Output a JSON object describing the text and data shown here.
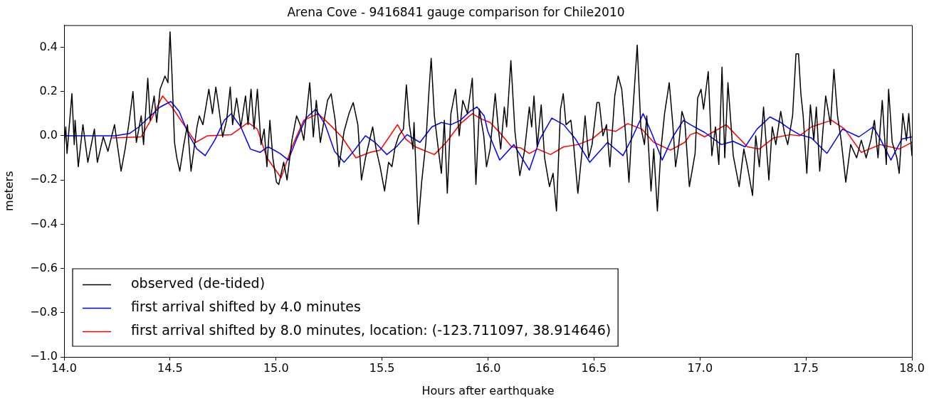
{
  "chart_data": {
    "type": "line",
    "title": "Arena Cove - 9416841 gauge comparison for Chile2010",
    "xlabel": "Hours after earthquake",
    "ylabel": "meters",
    "xlim": [
      14.0,
      18.0
    ],
    "ylim": [
      -1.0,
      0.5
    ],
    "xticks": [
      {
        "value": 14,
        "label": "14.0"
      },
      {
        "value": 14.5,
        "label": "14.5"
      },
      {
        "value": 15,
        "label": "15.0"
      },
      {
        "value": 15.5,
        "label": "15.5"
      },
      {
        "value": 16,
        "label": "16.0"
      },
      {
        "value": 16.5,
        "label": "16.5"
      },
      {
        "value": 17,
        "label": "17.0"
      },
      {
        "value": 17.5,
        "label": "17.5"
      },
      {
        "value": 18,
        "label": "18.0"
      }
    ],
    "yticks": [
      {
        "value": -1.0,
        "label": "−1.0"
      },
      {
        "value": -0.8,
        "label": "−0.8"
      },
      {
        "value": -0.6,
        "label": "−0.6"
      },
      {
        "value": -0.4,
        "label": "−0.4"
      },
      {
        "value": -0.2,
        "label": "−0.2"
      },
      {
        "value": 0,
        "label": "0.0"
      },
      {
        "value": 0.2,
        "label": "0.2"
      },
      {
        "value": 0.4,
        "label": "0.4"
      }
    ],
    "legend": "bottom left",
    "series": [
      {
        "name": "observed (de-tided)",
        "color": "#000000",
        "x": [
          14.0,
          14.008,
          14.014,
          14.037,
          14.048,
          14.052,
          14.067,
          14.089,
          14.112,
          14.143,
          14.157,
          14.185,
          14.207,
          14.238,
          14.269,
          14.288,
          14.308,
          14.325,
          14.341,
          14.364,
          14.375,
          14.395,
          14.406,
          14.425,
          14.437,
          14.453,
          14.476,
          14.49,
          14.5,
          14.509,
          14.521,
          14.532,
          14.546,
          14.565,
          14.582,
          14.599,
          14.627,
          14.638,
          14.655,
          14.683,
          14.7,
          14.716,
          14.731,
          14.748,
          14.767,
          14.784,
          14.795,
          14.814,
          14.834,
          14.856,
          14.868,
          14.882,
          14.896,
          14.912,
          14.929,
          14.944,
          14.957,
          14.971,
          14.985,
          15.002,
          15.013,
          15.036,
          15.052,
          15.075,
          15.097,
          15.114,
          15.131,
          15.159,
          15.176,
          15.19,
          15.209,
          15.243,
          15.26,
          15.279,
          15.297,
          15.321,
          15.344,
          15.364,
          15.386,
          15.403,
          15.422,
          15.456,
          15.472,
          15.491,
          15.512,
          15.531,
          15.547,
          15.562,
          15.579,
          15.601,
          15.615,
          15.629,
          15.646,
          15.651,
          15.671,
          15.688,
          15.707,
          15.722,
          15.732,
          15.747,
          15.763,
          15.78,
          15.794,
          15.808,
          15.825,
          15.847,
          15.864,
          15.881,
          15.903,
          15.926,
          15.943,
          15.959,
          15.98,
          15.993,
          16.01,
          16.034,
          16.049,
          16.06,
          16.077,
          16.088,
          16.108,
          16.127,
          16.15,
          16.172,
          16.195,
          16.206,
          16.217,
          16.232,
          16.251,
          16.267,
          16.29,
          16.307,
          16.323,
          16.342,
          16.355,
          16.368,
          16.391,
          16.404,
          16.424,
          16.447,
          16.458,
          16.475,
          16.491,
          16.514,
          16.525,
          16.542,
          16.559,
          16.575,
          16.598,
          16.614,
          16.631,
          16.648,
          16.665,
          16.682,
          16.704,
          16.721,
          16.738,
          16.749,
          16.769,
          16.782,
          16.799,
          16.816,
          16.833,
          16.855,
          16.872,
          16.885,
          16.9,
          16.915,
          16.928,
          16.95,
          16.977,
          16.989,
          17.005,
          17.017,
          17.039,
          17.056,
          17.073,
          17.089,
          17.104,
          17.117,
          17.132,
          17.157,
          17.185,
          17.207,
          17.224,
          17.248,
          17.263,
          17.28,
          17.3,
          17.325,
          17.341,
          17.358,
          17.381,
          17.397,
          17.414,
          17.437,
          17.453,
          17.465,
          17.476,
          17.487,
          17.504,
          17.521,
          17.537,
          17.549,
          17.565,
          17.593,
          17.616,
          17.632,
          17.649,
          17.666,
          17.688,
          17.711,
          17.739,
          17.761,
          17.784,
          17.806,
          17.823,
          17.84,
          17.86,
          17.879,
          17.89,
          17.907,
          17.929,
          17.94,
          17.957,
          17.974,
          17.985,
          18.0
        ],
        "values": [
          -0.05,
          0.04,
          -0.08,
          0.19,
          -0.04,
          0.07,
          -0.14,
          0.05,
          -0.12,
          0.03,
          -0.12,
          -0.005,
          -0.07,
          0.05,
          -0.16,
          -0.06,
          0.07,
          0.2,
          -0.03,
          0.09,
          -0.04,
          0.26,
          0.07,
          0.18,
          0.06,
          0.21,
          0.27,
          0.24,
          0.47,
          0.28,
          -0.03,
          -0.1,
          -0.16,
          -0.04,
          0.05,
          -0.16,
          0.04,
          0.09,
          0.05,
          0.21,
          0.1,
          0.22,
          0.12,
          -0.005,
          0.07,
          0.22,
          0.05,
          0.17,
          0.04,
          0.18,
          0.05,
          0.21,
          0.03,
          0.21,
          -0.04,
          0.03,
          -0.14,
          0.07,
          -0.1,
          -0.21,
          -0.22,
          -0.12,
          -0.2,
          -0.02,
          0.09,
          0.05,
          -0.02,
          0.24,
          -0.005,
          0.16,
          -0.03,
          0.16,
          0.19,
          0.07,
          -0.14,
          0.02,
          0.1,
          0.15,
          0.05,
          -0.2,
          -0.1,
          0.04,
          -0.06,
          -0.14,
          -0.25,
          -0.12,
          -0.14,
          -0.05,
          0,
          0.03,
          0.23,
          0.05,
          -0.06,
          0.06,
          -0.4,
          -0.2,
          -0.03,
          0.21,
          0.35,
          0.09,
          -0.04,
          -0.17,
          0.07,
          -0.26,
          0.1,
          0.21,
          0,
          0.16,
          0.1,
          0.26,
          -0.22,
          0.12,
          0,
          -0.14,
          -0.06,
          0.19,
          0.03,
          -0.06,
          0.13,
          0.04,
          0.34,
          0.02,
          -0.18,
          -0.07,
          0.13,
          0.04,
          0.18,
          -0.05,
          0.14,
          -0.1,
          -0.23,
          -0.17,
          -0.34,
          0.12,
          0.19,
          0.05,
          0.07,
          -0.04,
          -0.26,
          -0.04,
          0.09,
          -0.1,
          -0.04,
          0.15,
          0.15,
          0,
          0.05,
          -0.14,
          0.18,
          0.27,
          0.21,
          0.02,
          -0.21,
          0.09,
          0.41,
          0.04,
          -0.04,
          0.09,
          -0.25,
          -0.06,
          -0.34,
          -0.06,
          0.1,
          0.24,
          0.05,
          -0.14,
          -0.04,
          0.11,
          0.07,
          -0.23,
          -0.08,
          0.17,
          0.21,
          0.12,
          0.29,
          -0.09,
          0.04,
          -0.13,
          0.31,
          -0.1,
          0.24,
          -0.09,
          -0.23,
          -0.06,
          -0.14,
          -0.27,
          0,
          -0.14,
          0.13,
          -0.2,
          0.04,
          -0.04,
          0.11,
          0.02,
          -0.04,
          0.09,
          0.37,
          0.37,
          0.19,
          0.09,
          -0.17,
          0.14,
          -0.02,
          0.13,
          -0.16,
          0.18,
          0.05,
          0.3,
          0.09,
          -0.02,
          -0.21,
          -0.04,
          -0.1,
          -0.02,
          -0.1,
          -0.02,
          0.07,
          -0.1,
          0.16,
          -0.13,
          0.21,
          -0.03,
          -0.1,
          -0.17,
          0.1,
          -0.02,
          0.1,
          -0.09
        ]
      },
      {
        "name": "first arrival shifted by 4.0 minutes",
        "color": "#0000ff",
        "x": [
          14.0,
          14.24,
          14.308,
          14.353,
          14.397,
          14.453,
          14.504,
          14.543,
          14.588,
          14.627,
          14.666,
          14.711,
          14.756,
          14.789,
          14.834,
          14.879,
          14.924,
          14.963,
          15.019,
          15.058,
          15.097,
          15.142,
          15.187,
          15.232,
          15.276,
          15.321,
          15.366,
          15.422,
          15.467,
          15.523,
          15.568,
          15.618,
          15.679,
          15.735,
          15.78,
          15.825,
          15.87,
          15.915,
          15.948,
          15.982,
          15.999,
          16.055,
          16.122,
          16.195,
          16.245,
          16.301,
          16.357,
          16.413,
          16.48,
          16.564,
          16.637,
          16.682,
          16.732,
          16.771,
          16.822,
          16.872,
          16.922,
          16.955,
          17.022,
          17.101,
          17.157,
          17.213,
          17.269,
          17.33,
          17.381,
          17.425,
          17.47,
          17.526,
          17.599,
          17.672,
          17.75,
          17.817,
          17.851,
          17.901,
          17.952,
          18.0
        ],
        "values": [
          0,
          0,
          0.01,
          0.04,
          0.08,
          0.13,
          0.155,
          0.11,
          0.005,
          -0.06,
          -0.09,
          -0.02,
          0.07,
          0.1,
          0.04,
          -0.06,
          -0.075,
          -0.05,
          -0.08,
          -0.11,
          -0.015,
          0.08,
          0.12,
          0.05,
          -0.07,
          -0.12,
          -0.07,
          0,
          -0.03,
          -0.085,
          -0.05,
          0.005,
          -0.03,
          0.04,
          0.06,
          0.05,
          0.07,
          0.11,
          0.13,
          0.09,
          0.02,
          -0.11,
          -0.04,
          -0.155,
          -0.015,
          0.08,
          0.05,
          -0.015,
          -0.12,
          -0.03,
          -0.09,
          -0.005,
          0.1,
          0.015,
          -0.11,
          -0.005,
          0.07,
          0.05,
          0.015,
          -0.04,
          -0.025,
          -0.05,
          0.03,
          0.085,
          0.06,
          0.03,
          0.005,
          -0.01,
          -0.08,
          0.03,
          -0.005,
          0.04,
          -0.015,
          -0.11,
          -0.015,
          -0.005
        ]
      },
      {
        "name": "first arrival shifted by 8.0 minutes, location: (-123.711097, 38.914646)",
        "color": "#ff0000",
        "x": [
          14.229,
          14.364,
          14.409,
          14.465,
          14.509,
          14.565,
          14.621,
          14.677,
          14.789,
          14.868,
          14.912,
          14.957,
          15.024,
          15.075,
          15.131,
          15.198,
          15.254,
          15.31,
          15.377,
          15.444,
          15.491,
          15.534,
          15.573,
          15.612,
          15.657,
          15.747,
          15.803,
          15.87,
          15.926,
          15.971,
          16.01,
          16.055,
          16.111,
          16.155,
          16.195,
          16.234,
          16.295,
          16.357,
          16.424,
          16.491,
          16.547,
          16.603,
          16.659,
          16.726,
          16.782,
          16.861,
          16.928,
          16.955,
          16.983,
          17.022,
          17.123,
          17.224,
          17.28,
          17.347,
          17.425,
          17.47,
          17.526,
          17.621,
          17.683,
          17.761,
          17.851,
          17.94,
          18.0
        ],
        "values": [
          -0.01,
          -0.005,
          0.07,
          0.18,
          0.13,
          0.05,
          -0.03,
          0,
          0.005,
          0.06,
          0.03,
          -0.1,
          -0.19,
          -0.05,
          0.07,
          0.1,
          0.05,
          -0.005,
          -0.1,
          -0.075,
          -0.065,
          -0.005,
          0.05,
          -0.015,
          -0.05,
          -0.085,
          -0.03,
          0.055,
          0.1,
          0.075,
          0.06,
          0.015,
          -0.05,
          -0.055,
          -0.08,
          -0.06,
          -0.085,
          -0.05,
          -0.04,
          -0.015,
          0.03,
          0.02,
          0.055,
          0.03,
          -0.03,
          -0.065,
          -0.03,
          0.005,
          0.015,
          -0.005,
          0.05,
          -0.05,
          -0.06,
          -0.01,
          0.005,
          0,
          0.04,
          0.07,
          0.03,
          -0.075,
          -0.04,
          -0.06,
          -0.03
        ]
      }
    ]
  }
}
